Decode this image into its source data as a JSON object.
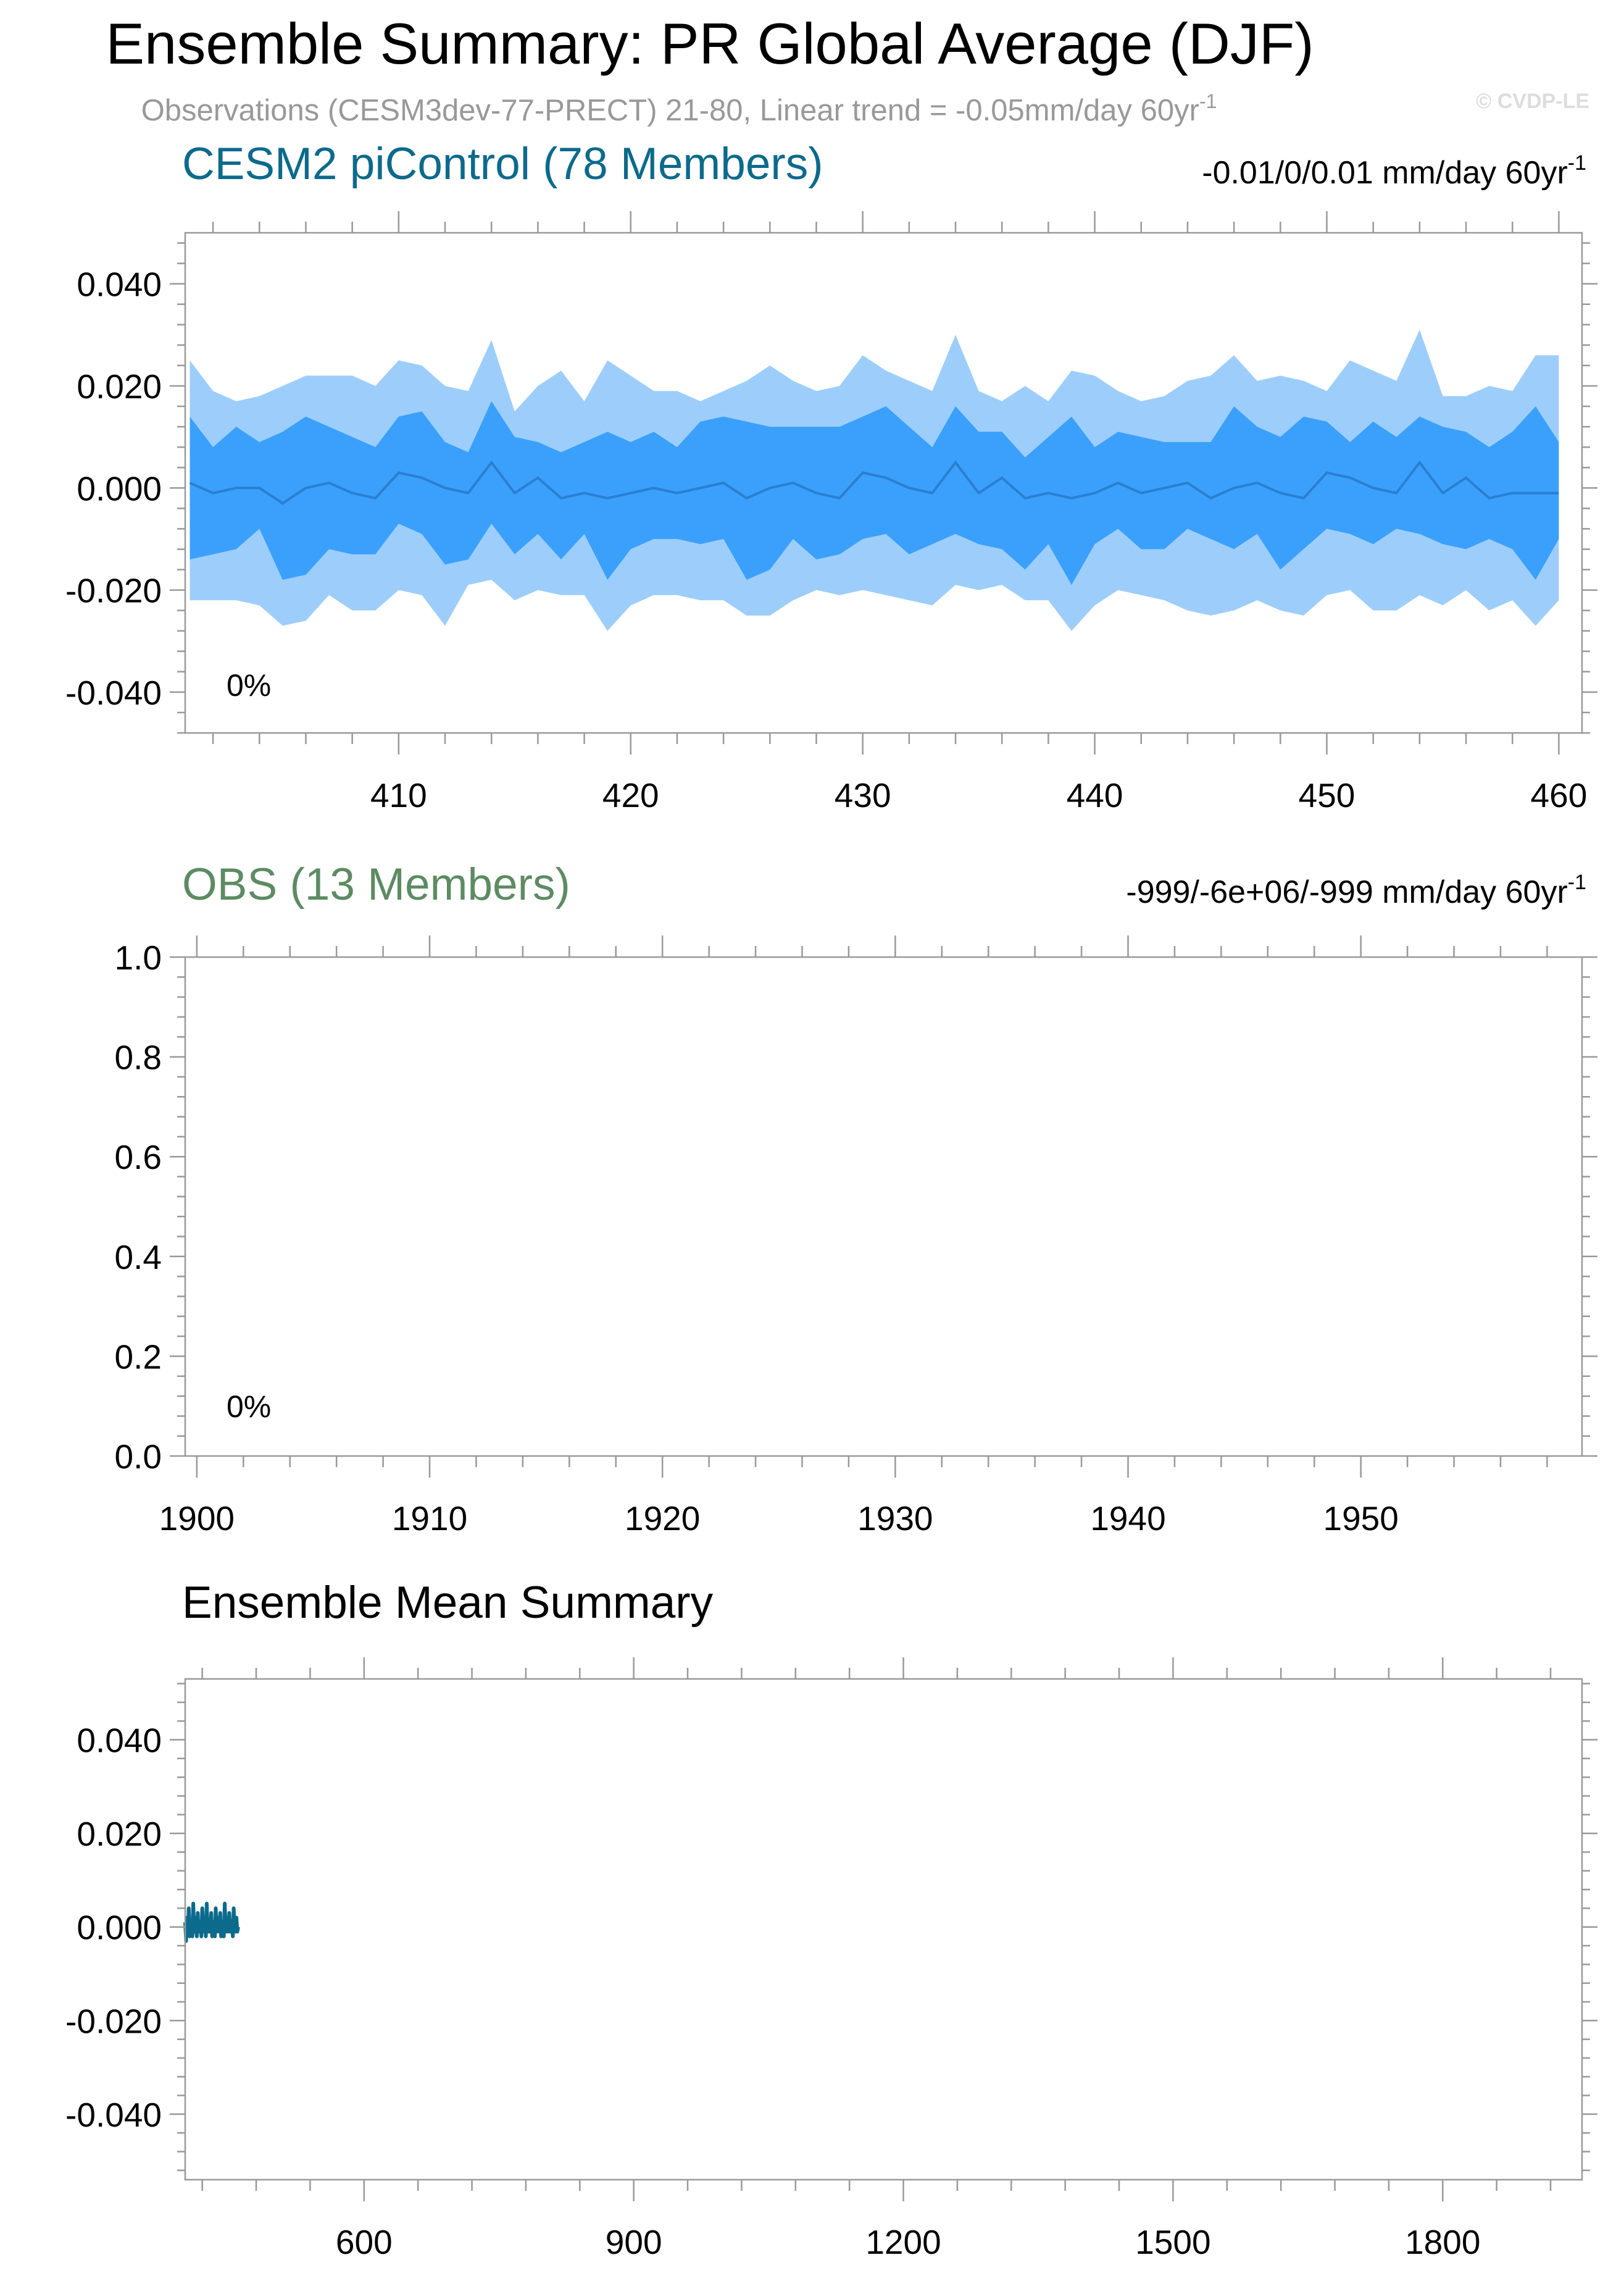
{
  "page": {
    "title": "Ensemble Summary: PR Global Average (DJF)",
    "subtitle": "Observations (CESM3dev-77-PRECT) 21-80, Linear trend = -0.05mm/day 60yr",
    "subtitle_superscript": "-1",
    "watermark": "© CVDP-LE"
  },
  "colors": {
    "model_title": "#0c6a8c",
    "obs_title": "#5d8b63",
    "subtitle": "#999999",
    "watermark": "#dddddd",
    "band_outer": "#9dcefb",
    "band_inner": "#3aa0fc",
    "median_line": "#2a7fd0",
    "ens_mean_line": "#0c6a8c",
    "frame": "#999999",
    "text": "#000000"
  },
  "chart_data": [
    {
      "type": "area",
      "title": "CESM2 piControl (78 Members)",
      "right_label": "-0.01/0/0.01 mm/day 60yr",
      "right_label_superscript": "-1",
      "percent_label": "0%",
      "xlim": [
        400.8,
        461
      ],
      "ylim": [
        -0.048,
        0.05
      ],
      "x_ticks": [
        410,
        420,
        430,
        440,
        450,
        460
      ],
      "y_ticks": [
        0.04,
        0.02,
        0.0,
        -0.02,
        -0.04
      ],
      "y_tick_labels": [
        "0.040",
        "0.020",
        "0.000",
        "-0.020",
        "-0.040"
      ],
      "x": [
        401,
        402,
        403,
        404,
        405,
        406,
        407,
        408,
        409,
        410,
        411,
        412,
        413,
        414,
        415,
        416,
        417,
        418,
        419,
        420,
        421,
        422,
        423,
        424,
        425,
        426,
        427,
        428,
        429,
        430,
        431,
        432,
        433,
        434,
        435,
        436,
        437,
        438,
        439,
        440,
        441,
        442,
        443,
        444,
        445,
        446,
        447,
        448,
        449,
        450,
        451,
        452,
        453,
        454,
        455,
        456,
        457,
        458,
        459,
        460
      ],
      "series": [
        {
          "role": "p90",
          "values": [
            0.025,
            0.019,
            0.017,
            0.018,
            0.02,
            0.022,
            0.022,
            0.022,
            0.02,
            0.025,
            0.024,
            0.02,
            0.019,
            0.029,
            0.015,
            0.02,
            0.023,
            0.017,
            0.025,
            0.022,
            0.019,
            0.019,
            0.017,
            0.019,
            0.021,
            0.024,
            0.021,
            0.019,
            0.02,
            0.026,
            0.023,
            0.021,
            0.019,
            0.03,
            0.019,
            0.017,
            0.02,
            0.017,
            0.023,
            0.022,
            0.019,
            0.017,
            0.018,
            0.021,
            0.022,
            0.026,
            0.021,
            0.022,
            0.021,
            0.019,
            0.025,
            0.023,
            0.021,
            0.031,
            0.018,
            0.018,
            0.02,
            0.019,
            0.026,
            0.026
          ]
        },
        {
          "role": "p75",
          "values": [
            0.014,
            0.008,
            0.012,
            0.009,
            0.011,
            0.014,
            0.012,
            0.01,
            0.008,
            0.014,
            0.015,
            0.009,
            0.007,
            0.017,
            0.01,
            0.009,
            0.007,
            0.009,
            0.011,
            0.009,
            0.011,
            0.008,
            0.013,
            0.014,
            0.013,
            0.012,
            0.012,
            0.012,
            0.012,
            0.014,
            0.016,
            0.012,
            0.008,
            0.016,
            0.011,
            0.011,
            0.006,
            0.01,
            0.014,
            0.008,
            0.011,
            0.01,
            0.009,
            0.009,
            0.009,
            0.016,
            0.012,
            0.01,
            0.014,
            0.013,
            0.009,
            0.013,
            0.01,
            0.014,
            0.012,
            0.011,
            0.008,
            0.011,
            0.016,
            0.009
          ]
        },
        {
          "role": "median",
          "values": [
            0.001,
            -0.001,
            0.0,
            0.0,
            -0.003,
            0.0,
            0.001,
            -0.001,
            -0.002,
            0.003,
            0.002,
            0.0,
            -0.001,
            0.005,
            -0.001,
            0.002,
            -0.002,
            -0.001,
            -0.002,
            -0.001,
            0.0,
            -0.001,
            0.0,
            0.001,
            -0.002,
            0.0,
            0.001,
            -0.001,
            -0.002,
            0.003,
            0.002,
            0.0,
            -0.001,
            0.005,
            -0.001,
            0.002,
            -0.002,
            -0.001,
            -0.002,
            -0.001,
            0.001,
            -0.001,
            0.0,
            0.001,
            -0.002,
            0.0,
            0.001,
            -0.001,
            -0.002,
            0.003,
            0.002,
            0.0,
            -0.001,
            0.005,
            -0.001,
            0.002,
            -0.002,
            -0.001,
            -0.001,
            -0.001
          ]
        },
        {
          "role": "p25",
          "values": [
            -0.014,
            -0.013,
            -0.012,
            -0.008,
            -0.018,
            -0.017,
            -0.012,
            -0.013,
            -0.013,
            -0.007,
            -0.009,
            -0.015,
            -0.014,
            -0.007,
            -0.013,
            -0.009,
            -0.014,
            -0.009,
            -0.018,
            -0.012,
            -0.01,
            -0.01,
            -0.011,
            -0.01,
            -0.018,
            -0.016,
            -0.01,
            -0.014,
            -0.013,
            -0.01,
            -0.009,
            -0.013,
            -0.011,
            -0.009,
            -0.011,
            -0.012,
            -0.016,
            -0.011,
            -0.019,
            -0.011,
            -0.008,
            -0.012,
            -0.012,
            -0.008,
            -0.01,
            -0.012,
            -0.009,
            -0.016,
            -0.012,
            -0.008,
            -0.009,
            -0.011,
            -0.008,
            -0.009,
            -0.011,
            -0.012,
            -0.01,
            -0.012,
            -0.018,
            -0.01
          ]
        },
        {
          "role": "p10",
          "values": [
            -0.022,
            -0.022,
            -0.022,
            -0.023,
            -0.027,
            -0.026,
            -0.021,
            -0.024,
            -0.024,
            -0.02,
            -0.021,
            -0.027,
            -0.019,
            -0.018,
            -0.022,
            -0.02,
            -0.021,
            -0.021,
            -0.028,
            -0.023,
            -0.021,
            -0.021,
            -0.022,
            -0.022,
            -0.025,
            -0.025,
            -0.022,
            -0.02,
            -0.021,
            -0.02,
            -0.021,
            -0.022,
            -0.023,
            -0.019,
            -0.02,
            -0.019,
            -0.022,
            -0.022,
            -0.028,
            -0.023,
            -0.02,
            -0.021,
            -0.022,
            -0.024,
            -0.025,
            -0.024,
            -0.022,
            -0.024,
            -0.025,
            -0.021,
            -0.02,
            -0.024,
            -0.024,
            -0.021,
            -0.023,
            -0.02,
            -0.024,
            -0.022,
            -0.027,
            -0.022
          ]
        }
      ]
    },
    {
      "type": "line",
      "title": "OBS (13 Members)",
      "right_label": "-999/-6e+06/-999 mm/day 60yr",
      "right_label_superscript": "-1",
      "percent_label": "0%",
      "xlim": [
        1899.5,
        1959.5
      ],
      "ylim": [
        0,
        1
      ],
      "x_ticks": [
        1900,
        1910,
        1920,
        1930,
        1940,
        1950
      ],
      "y_ticks": [
        1.0,
        0.8,
        0.6,
        0.4,
        0.2,
        0.0
      ],
      "y_tick_labels": [
        "1.0",
        "0.8",
        "0.6",
        "0.4",
        "0.2",
        "0.0"
      ],
      "series": []
    },
    {
      "type": "line",
      "title": "Ensemble Mean Summary",
      "xlim": [
        401,
        1955
      ],
      "ylim": [
        -0.054,
        0.053
      ],
      "x_ticks": [
        600,
        900,
        1200,
        1500,
        1800
      ],
      "y_ticks": [
        0.04,
        0.02,
        0.0,
        -0.02,
        -0.04
      ],
      "y_tick_labels": [
        "0.040",
        "0.020",
        "0.000",
        "-0.020",
        "-0.040"
      ],
      "series": [
        {
          "role": "ensemble_mean",
          "x": [
            401,
            402,
            403,
            404,
            405,
            406,
            407,
            408,
            409,
            410,
            411,
            412,
            413,
            414,
            415,
            416,
            417,
            418,
            419,
            420,
            421,
            422,
            423,
            424,
            425,
            426,
            427,
            428,
            429,
            430,
            431,
            432,
            433,
            434,
            435,
            436,
            437,
            438,
            439,
            440,
            441,
            442,
            443,
            444,
            445,
            446,
            447,
            448,
            449,
            450,
            451,
            452,
            453,
            454,
            455,
            456,
            457,
            458,
            459,
            460
          ],
          "values": [
            0.001,
            -0.003,
            0.002,
            -0.001,
            0.004,
            -0.002,
            0.001,
            0.0,
            -0.002,
            0.005,
            -0.001,
            0.002,
            0.0,
            -0.002,
            0.003,
            -0.001,
            0.0,
            0.001,
            -0.002,
            0.004,
            0.0,
            -0.001,
            0.002,
            -0.002,
            0.005,
            -0.001,
            0.001,
            -0.001,
            0.0,
            0.003,
            -0.002,
            0.001,
            0.0,
            -0.002,
            0.004,
            -0.001,
            0.002,
            0.0,
            -0.001,
            0.003,
            -0.002,
            0.0,
            0.001,
            -0.002,
            0.005,
            0.0,
            -0.001,
            0.002,
            -0.001,
            0.003,
            -0.001,
            0.0,
            0.001,
            -0.002,
            0.004,
            0.0,
            -0.001,
            0.002,
            -0.001,
            0.0
          ]
        }
      ]
    }
  ]
}
